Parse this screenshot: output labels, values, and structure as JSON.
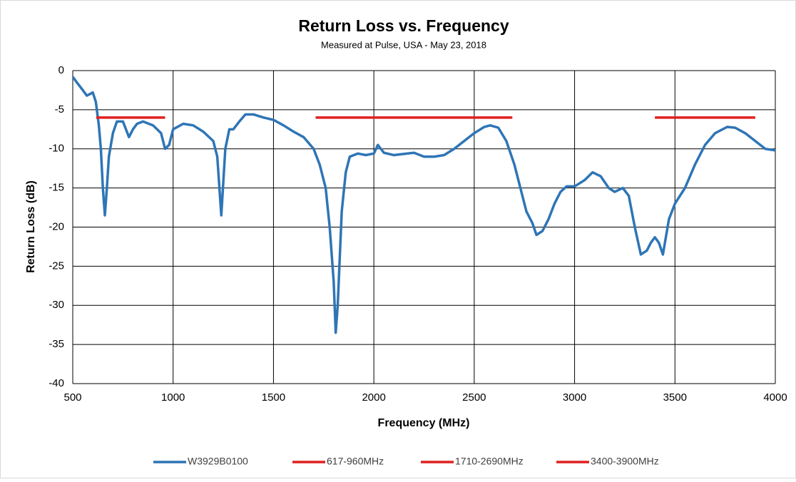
{
  "chart_data": {
    "type": "line",
    "title": "Return Loss vs. Frequency",
    "subtitle": "Measured at Pulse, USA - May 23, 2018",
    "x_label": "Frequency (MHz)",
    "y_label": "Return Loss (dB)",
    "xlim": [
      500,
      4000
    ],
    "xticks": [
      500,
      1000,
      1500,
      2000,
      2500,
      3000,
      3500,
      4000
    ],
    "ylim": [
      -40,
      0
    ],
    "yticks": [
      0,
      -5,
      -10,
      -15,
      -20,
      -25,
      -30,
      -35,
      -40
    ],
    "grid": true,
    "legend": "bottom",
    "series": [
      {
        "name": "W3929B0100",
        "color": "#2e75b6",
        "x": [
          500,
          520,
          550,
          570,
          600,
          615,
          630,
          640,
          650,
          660,
          670,
          680,
          700,
          720,
          750,
          780,
          800,
          820,
          850,
          900,
          940,
          960,
          980,
          1000,
          1050,
          1100,
          1150,
          1200,
          1220,
          1240,
          1260,
          1280,
          1300,
          1330,
          1360,
          1400,
          1450,
          1500,
          1550,
          1600,
          1650,
          1700,
          1730,
          1760,
          1780,
          1800,
          1810,
          1820,
          1840,
          1860,
          1880,
          1920,
          1960,
          2000,
          2020,
          2050,
          2100,
          2200,
          2250,
          2300,
          2350,
          2400,
          2450,
          2500,
          2550,
          2580,
          2620,
          2660,
          2700,
          2730,
          2760,
          2790,
          2810,
          2840,
          2870,
          2900,
          2930,
          2960,
          3000,
          3050,
          3090,
          3130,
          3170,
          3200,
          3240,
          3270,
          3300,
          3330,
          3360,
          3380,
          3400,
          3420,
          3440,
          3470,
          3500,
          3550,
          3600,
          3650,
          3700,
          3760,
          3800,
          3850,
          3900,
          3950,
          4000
        ],
        "values": [
          -0.8,
          -1.5,
          -2.5,
          -3.2,
          -2.8,
          -4,
          -7,
          -10,
          -15,
          -18.5,
          -15,
          -11,
          -8,
          -6.5,
          -6.5,
          -8.5,
          -7.5,
          -6.8,
          -6.5,
          -7,
          -8,
          -10,
          -9.5,
          -7.5,
          -6.8,
          -7,
          -7.8,
          -9,
          -11,
          -18.5,
          -10,
          -7.5,
          -7.5,
          -6.5,
          -5.6,
          -5.6,
          -6,
          -6.3,
          -7,
          -7.8,
          -8.5,
          -10,
          -12,
          -15,
          -20,
          -27,
          -33.5,
          -30,
          -18,
          -13,
          -11,
          -10.6,
          -10.8,
          -10.6,
          -9.5,
          -10.5,
          -10.8,
          -10.5,
          -11,
          -11,
          -10.8,
          -10,
          -9,
          -8,
          -7.2,
          -7,
          -7.3,
          -9,
          -12,
          -15,
          -18,
          -19.5,
          -21,
          -20.5,
          -19,
          -17,
          -15.5,
          -14.8,
          -14.8,
          -14,
          -13,
          -13.5,
          -15,
          -15.5,
          -15,
          -16,
          -20,
          -23.5,
          -23,
          -22,
          -21.3,
          -22,
          -23.5,
          -19,
          -17,
          -15,
          -12,
          -9.5,
          -8,
          -7.2,
          -7.3,
          -8,
          -9,
          -10,
          -10.2
        ]
      },
      {
        "name": "617-960MHz",
        "color": "#e02020",
        "x": [
          617,
          960
        ],
        "values": [
          -6,
          -6
        ]
      },
      {
        "name": "1710-2690MHz",
        "color": "#e02020",
        "x": [
          1710,
          2690
        ],
        "values": [
          -6,
          -6
        ]
      },
      {
        "name": "3400-3900MHz",
        "color": "#e02020",
        "x": [
          3400,
          3900
        ],
        "values": [
          -6,
          -6
        ]
      }
    ]
  }
}
